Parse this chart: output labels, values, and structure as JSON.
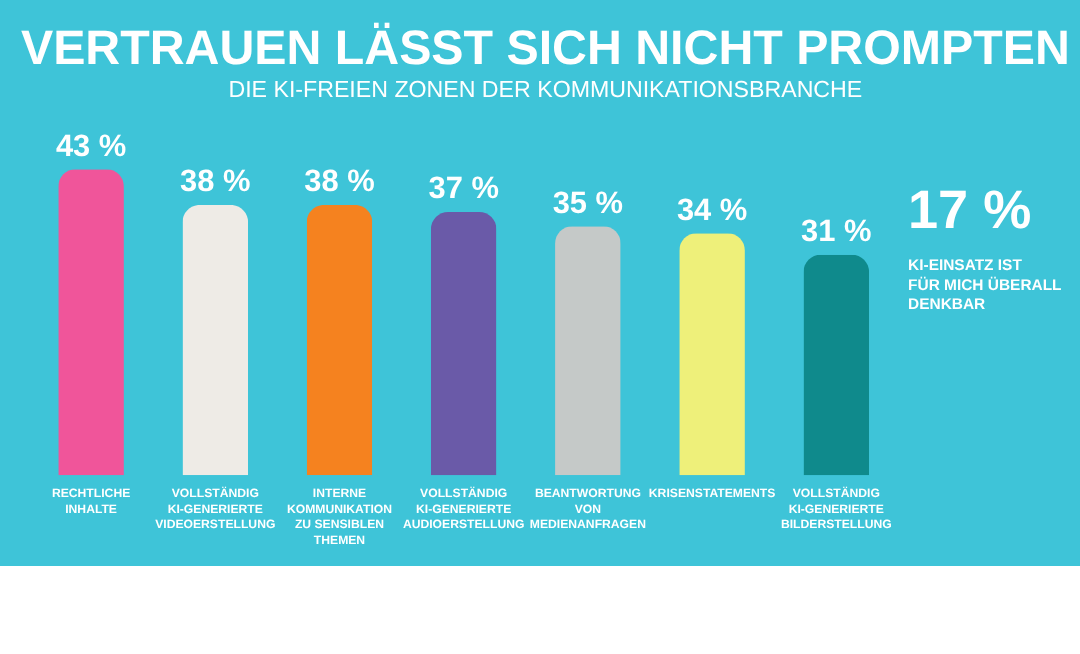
{
  "chart_data": {
    "type": "bar",
    "title": "VERTRAUEN LÄSST SICH NICHT PROMPTEN",
    "subtitle": "DIE KI-FREIEN ZONEN DER KOMMUNIKATIONSBRANCHE",
    "categories": [
      "RECHTLICHE INHALTE",
      "VOLLSTÄNDIG KI-GENERIERTE VIDEOERSTELLUNG",
      "INTERNE KOMMUNIKATION ZU SENSIBLEN THEMEN",
      "VOLLSTÄNDIG KI-GENERIERTE AUDIOERSTELLUNG",
      "BEANTWORTUNG VON MEDIENANFRAGEN",
      "KRISENSTATEMENTS",
      "VOLLSTÄNDIG KI-GENERIERTE BILDERSTELLUNG"
    ],
    "values": [
      43,
      38,
      38,
      37,
      35,
      34,
      31
    ],
    "value_labels": [
      "43 %",
      "38 %",
      "38 %",
      "37 %",
      "35 %",
      "34 %",
      "31 %"
    ],
    "colors": [
      "#f0559a",
      "#eeebe6",
      "#f5821f",
      "#6a5aa8",
      "#c5c9c8",
      "#eef07a",
      "#0f8a8c"
    ],
    "annotations": [
      "17 %",
      "KI-EINSATZ IST FÜR MICH ÜBERALL DENKBAR"
    ],
    "legend": false
  }
}
